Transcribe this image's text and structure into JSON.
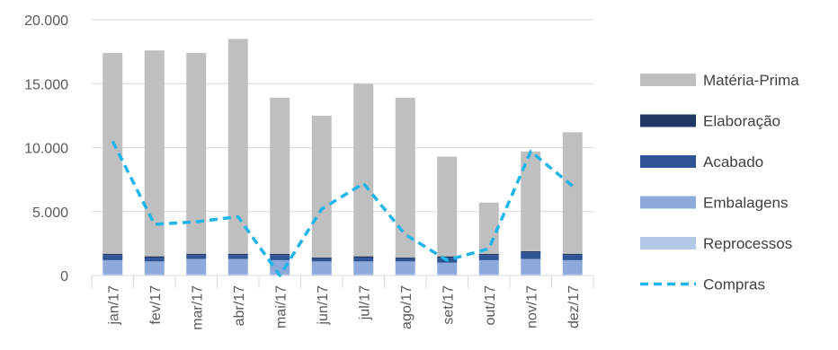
{
  "chart_data": {
    "type": "bar",
    "stacked": true,
    "categories": [
      "jan/17",
      "fev/17",
      "mar/17",
      "abr/17",
      "mai/17",
      "jun/17",
      "jul/17",
      "ago/17",
      "set/17",
      "out/17",
      "nov/17",
      "dez/17"
    ],
    "ylim": [
      0,
      20000
    ],
    "yticks": [
      0,
      5000,
      10000,
      15000,
      20000
    ],
    "ytick_labels": [
      "0",
      "5.000",
      "10.000",
      "15.000",
      "20.000"
    ],
    "grid": true,
    "legend_position": "right",
    "series": [
      {
        "name": "Reprocessos",
        "type": "bar",
        "color": "#b4c7e7",
        "values": [
          100,
          100,
          100,
          100,
          100,
          100,
          100,
          100,
          100,
          100,
          100,
          100
        ]
      },
      {
        "name": "Embalagens",
        "type": "bar",
        "color": "#8eaadb",
        "values": [
          1100,
          1000,
          1200,
          1200,
          1100,
          1000,
          1000,
          1000,
          900,
          1100,
          1200,
          1100
        ]
      },
      {
        "name": "Acabado",
        "type": "bar",
        "color": "#2f5597",
        "values": [
          400,
          300,
          300,
          300,
          400,
          200,
          300,
          200,
          400,
          400,
          500,
          400
        ]
      },
      {
        "name": "Elaboração",
        "type": "bar",
        "color": "#1f3864",
        "values": [
          100,
          100,
          100,
          100,
          100,
          100,
          100,
          100,
          100,
          100,
          100,
          100
        ]
      },
      {
        "name": "Matéria-Prima",
        "type": "bar",
        "color": "#bfbfbf",
        "values": [
          15700,
          16100,
          15700,
          16800,
          12200,
          11100,
          13500,
          12500,
          7800,
          4000,
          7800,
          9500
        ]
      },
      {
        "name": "Compras",
        "type": "line",
        "color": "#1fb5e8",
        "dash": true,
        "values": [
          10500,
          4000,
          4200,
          4600,
          0,
          5200,
          7200,
          3200,
          1200,
          2100,
          9700,
          7000
        ]
      }
    ],
    "legend_order": [
      "Matéria-Prima",
      "Elaboração",
      "Acabado",
      "Embalagens",
      "Reprocessos",
      "Compras"
    ]
  }
}
